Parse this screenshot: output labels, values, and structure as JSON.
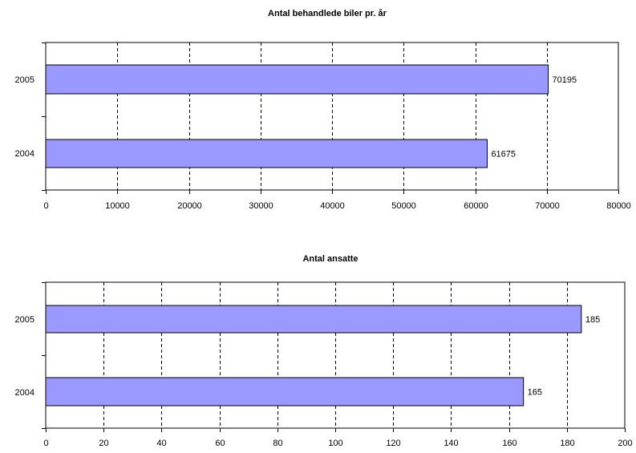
{
  "chart_data": [
    {
      "type": "bar",
      "orientation": "horizontal",
      "title": "Antal behandlede biler pr. år",
      "categories": [
        "2005",
        "2004"
      ],
      "values": [
        70195,
        61675
      ],
      "data_labels": [
        "70195",
        "61675"
      ],
      "xlim": [
        0,
        80000
      ],
      "x_ticks": [
        "0",
        "10000",
        "20000",
        "30000",
        "40000",
        "50000",
        "60000",
        "70000",
        "80000"
      ],
      "grid": "vertical dashed",
      "legend": "none",
      "bar_color": "#9999ff"
    },
    {
      "type": "bar",
      "orientation": "horizontal",
      "title": "Antal ansatte",
      "categories": [
        "2005",
        "2004"
      ],
      "values": [
        185,
        165
      ],
      "data_labels": [
        "185",
        "165"
      ],
      "xlim": [
        0,
        200
      ],
      "x_ticks": [
        "0",
        "20",
        "40",
        "60",
        "80",
        "100",
        "120",
        "140",
        "160",
        "180",
        "200"
      ],
      "grid": "vertical dashed",
      "legend": "none",
      "bar_color": "#9999ff"
    }
  ]
}
